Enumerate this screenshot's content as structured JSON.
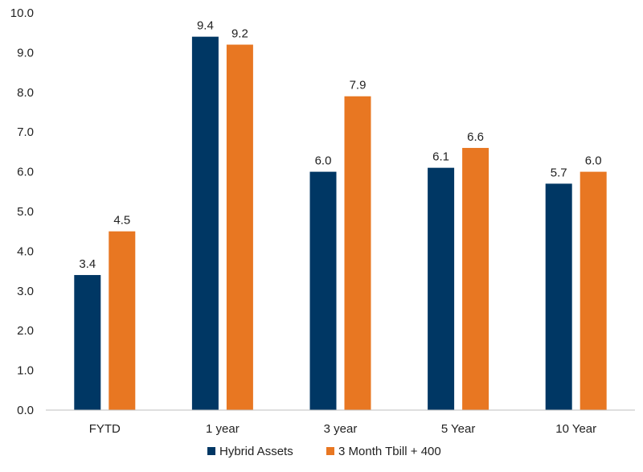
{
  "chart_data": {
    "type": "bar",
    "title": "",
    "xlabel": "",
    "ylabel": "",
    "ylim": [
      0,
      10
    ],
    "ytick_step": 1,
    "ytick_labels": [
      "0.0",
      "1.0",
      "2.0",
      "3.0",
      "4.0",
      "5.0",
      "6.0",
      "7.0",
      "8.0",
      "9.0",
      "10.0"
    ],
    "categories": [
      "FYTD",
      "1 year",
      "3 year",
      "5 Year",
      "10 Year"
    ],
    "series": [
      {
        "name": "Hybrid Assets",
        "color": "#003764",
        "values": [
          3.4,
          9.4,
          6.0,
          6.1,
          5.7
        ],
        "labels": [
          "3.4",
          "9.4",
          "6.0",
          "6.1",
          "5.7"
        ]
      },
      {
        "name": "3 Month Tbill + 400",
        "color": "#E87722",
        "values": [
          4.5,
          9.2,
          7.9,
          6.6,
          6.0
        ],
        "labels": [
          "4.5",
          "9.2",
          "7.9",
          "6.6",
          "6.0"
        ]
      }
    ],
    "grid": false,
    "legend_position": "bottom-center",
    "axis_color": "#bfbfbf"
  }
}
